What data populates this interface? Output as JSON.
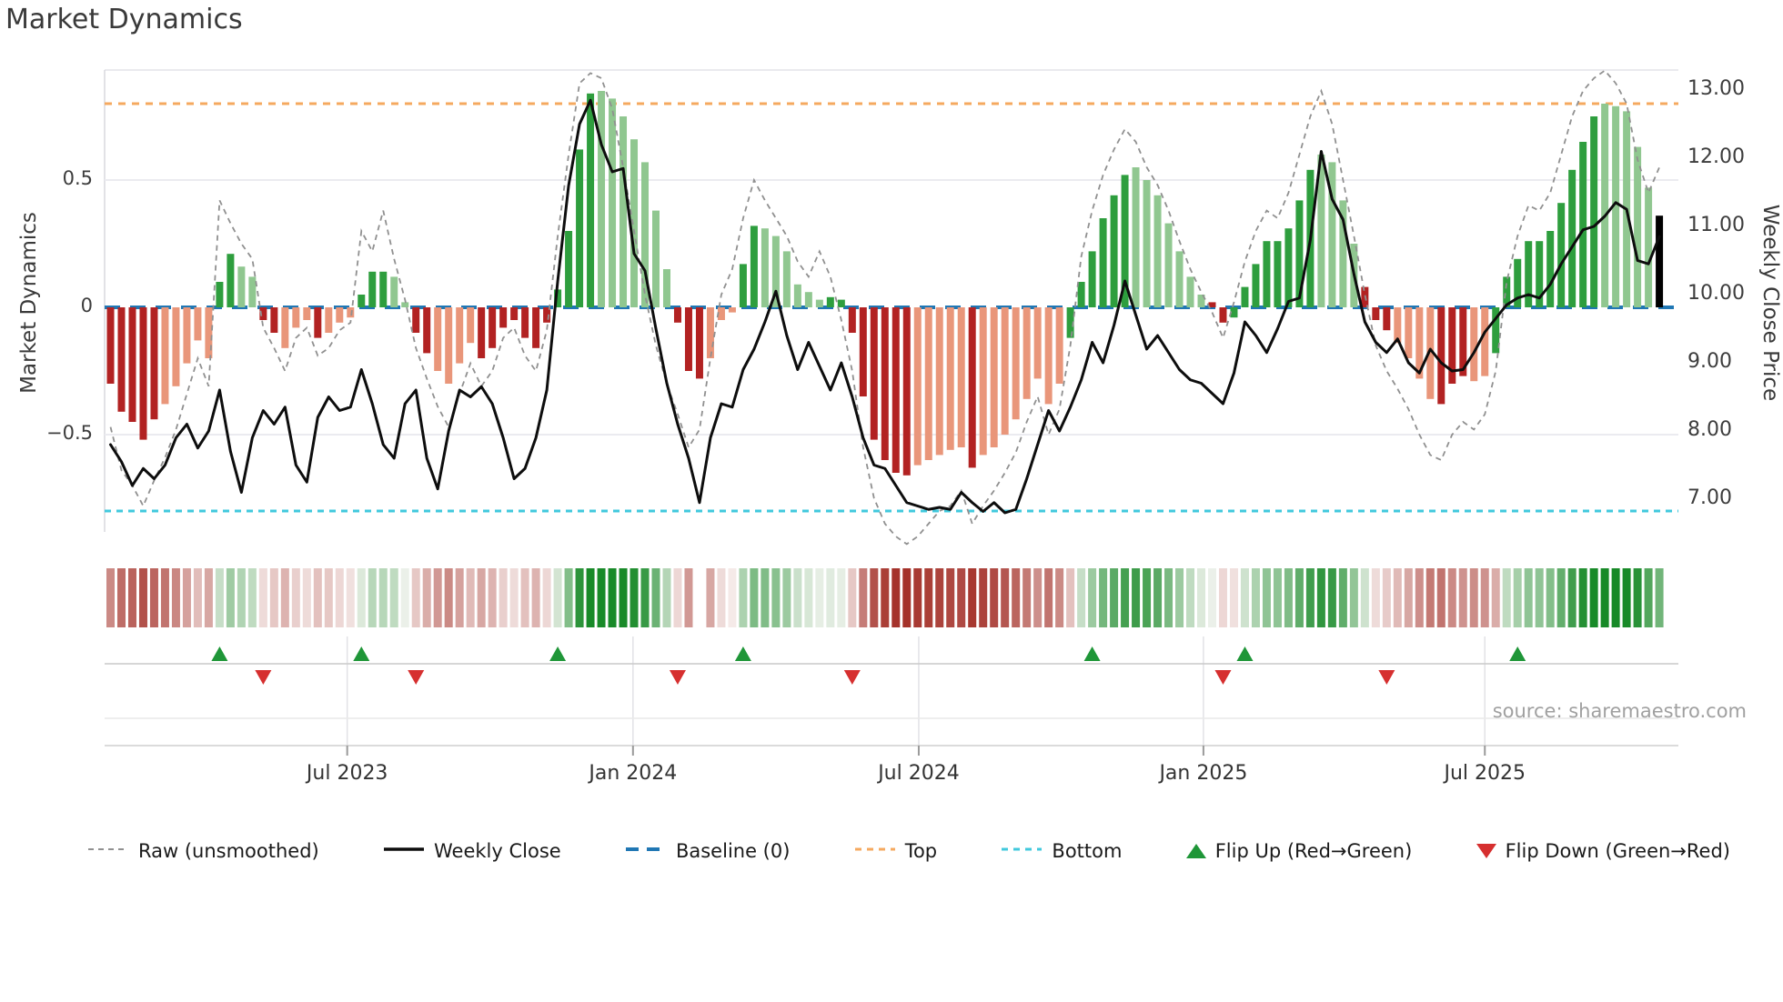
{
  "title": "Market Dynamics",
  "source_note": "source: sharemaestro.com",
  "axes": {
    "left_label": "Market Dynamics",
    "right_label": "Weekly Close Price",
    "left_ticks": [
      "0.5",
      "0",
      "−0.5"
    ],
    "left_tick_values": [
      0.5,
      0,
      -0.5
    ],
    "right_ticks": [
      "13.00",
      "12.00",
      "11.00",
      "10.00",
      "9.00",
      "8.00",
      "7.00"
    ],
    "right_tick_values": [
      13,
      12,
      11,
      10,
      9,
      8,
      7
    ],
    "x_ticks": [
      "Jul 2023",
      "Jan 2024",
      "Jul 2024",
      "Jan 2025",
      "Jul 2025"
    ],
    "x_tick_week_index": [
      21.7,
      47.9,
      74.1,
      100.2,
      126.0
    ]
  },
  "legend": [
    {
      "id": "raw",
      "label": "Raw (unsmoothed)",
      "swatch": "dashed-gray-line"
    },
    {
      "id": "weekly-close",
      "label": "Weekly Close",
      "swatch": "solid-black-line"
    },
    {
      "id": "baseline",
      "label": "Baseline (0)",
      "swatch": "dashed-blue-line"
    },
    {
      "id": "top",
      "label": "Top",
      "swatch": "dashed-orange-line"
    },
    {
      "id": "bottom",
      "label": "Bottom",
      "swatch": "dashed-cyan-line"
    },
    {
      "id": "flip-up",
      "label": "Flip Up (Red→Green)",
      "swatch": "green-up-triangle"
    },
    {
      "id": "flip-down",
      "label": "Flip Down (Green→Red)",
      "swatch": "red-down-triangle"
    }
  ],
  "colors": {
    "bar_dark_red": "#b22222",
    "bar_light_red": "#e9967a",
    "bar_dark_green": "#2e9e3e",
    "bar_light_green": "#90c790",
    "baseline_blue": "#2077b4",
    "top_orange": "#f5a95f",
    "bottom_cyan": "#41c9dd",
    "close_black": "#0d0d0d",
    "raw_gray": "#909090",
    "flip_up_green": "#1f9638",
    "flip_down_red": "#d62f2f",
    "heat_deep_green": "#188a28",
    "heat_deep_red": "#a02820",
    "grid": "#ebebf0"
  },
  "chart_data": {
    "type": "combo-bar-line-heatmap",
    "n_weeks": 143,
    "baseline": 0,
    "top_threshold": 0.8,
    "bottom_threshold": -0.8,
    "osc_axis_ticks": [
      0.5,
      0,
      -0.5
    ],
    "osc_axis_range": [
      -0.92,
      0.93
    ],
    "price_axis_range": [
      6.7,
      13.3
    ],
    "oscillator_values": [
      -0.3,
      -0.41,
      -0.45,
      -0.52,
      -0.44,
      -0.38,
      -0.31,
      -0.22,
      -0.13,
      -0.2,
      0.1,
      0.21,
      0.16,
      0.12,
      -0.05,
      -0.1,
      -0.16,
      -0.08,
      -0.05,
      -0.12,
      -0.1,
      -0.06,
      -0.04,
      0.05,
      0.14,
      0.14,
      0.12,
      0.02,
      -0.1,
      -0.18,
      -0.25,
      -0.3,
      -0.22,
      -0.14,
      -0.2,
      -0.16,
      -0.08,
      -0.05,
      -0.12,
      -0.16,
      -0.06,
      0.07,
      0.3,
      0.62,
      0.84,
      0.85,
      0.82,
      0.75,
      0.66,
      0.57,
      0.38,
      0.15,
      -0.06,
      -0.25,
      -0.28,
      -0.2,
      -0.05,
      -0.02,
      0.17,
      0.32,
      0.31,
      0.28,
      0.22,
      0.09,
      0.06,
      0.03,
      0.04,
      0.03,
      -0.1,
      -0.35,
      -0.52,
      -0.6,
      -0.65,
      -0.66,
      -0.62,
      -0.6,
      -0.58,
      -0.56,
      -0.55,
      -0.63,
      -0.58,
      -0.55,
      -0.5,
      -0.44,
      -0.36,
      -0.28,
      -0.38,
      -0.3,
      -0.12,
      0.1,
      0.22,
      0.35,
      0.44,
      0.52,
      0.55,
      0.5,
      0.44,
      0.33,
      0.22,
      0.12,
      0.05,
      0.02,
      -0.06,
      -0.04,
      0.08,
      0.17,
      0.26,
      0.26,
      0.31,
      0.42,
      0.54,
      0.6,
      0.57,
      0.42,
      0.25,
      0.08,
      -0.05,
      -0.09,
      -0.14,
      -0.2,
      -0.28,
      -0.36,
      -0.38,
      -0.3,
      -0.27,
      -0.29,
      -0.27,
      -0.18,
      0.12,
      0.19,
      0.26,
      0.26,
      0.3,
      0.41,
      0.54,
      0.65,
      0.75,
      0.8,
      0.79,
      0.77,
      0.63,
      0.47,
      0.36
    ],
    "oscillator_palette": "DDDDDSSSSSGGLLDDSSSDSSSGGGLLDDSSSSDDDDDDDGGGGLLLLLLLDDDSSSGGLLLLLLGGDDDDDDSSSSSDSSSSSSSSGGGGGGLLLLLLLDDGGGGGGGGLLLLDDDSSSSDDDSSGGGGGGGGGGLLLLL",
    "weekly_close": [
      7.8,
      7.55,
      7.2,
      7.45,
      7.3,
      7.5,
      7.9,
      8.1,
      7.75,
      8.0,
      8.6,
      7.7,
      7.1,
      7.9,
      8.3,
      8.1,
      8.35,
      7.5,
      7.25,
      8.2,
      8.5,
      8.3,
      8.35,
      8.9,
      8.4,
      7.8,
      7.6,
      8.4,
      8.6,
      7.6,
      7.15,
      8.0,
      8.6,
      8.5,
      8.65,
      8.4,
      7.9,
      7.3,
      7.45,
      7.9,
      8.6,
      10.2,
      11.6,
      12.5,
      12.85,
      12.2,
      11.8,
      11.85,
      10.6,
      10.35,
      9.5,
      8.7,
      8.1,
      7.6,
      6.95,
      7.9,
      8.4,
      8.35,
      8.9,
      9.2,
      9.6,
      10.05,
      9.4,
      8.9,
      9.3,
      8.95,
      8.6,
      9.0,
      8.5,
      7.9,
      7.5,
      7.45,
      7.2,
      6.95,
      6.9,
      6.85,
      6.88,
      6.85,
      7.1,
      6.95,
      6.82,
      6.95,
      6.8,
      6.85,
      7.3,
      7.8,
      8.3,
      8.0,
      8.35,
      8.75,
      9.3,
      9.0,
      9.55,
      10.2,
      9.7,
      9.2,
      9.4,
      9.15,
      8.9,
      8.75,
      8.7,
      8.55,
      8.4,
      8.85,
      9.6,
      9.4,
      9.15,
      9.5,
      9.9,
      9.95,
      10.8,
      12.1,
      11.4,
      11.1,
      10.3,
      9.6,
      9.3,
      9.15,
      9.35,
      9.0,
      8.85,
      9.2,
      9.0,
      8.88,
      8.9,
      9.15,
      9.45,
      9.65,
      9.85,
      9.95,
      10.0,
      9.95,
      10.15,
      10.45,
      10.7,
      10.95,
      11.0,
      11.15,
      11.35,
      11.25,
      10.5,
      10.45,
      10.85
    ],
    "raw_unsmoothed": [
      -0.47,
      -0.64,
      -0.7,
      -0.78,
      -0.68,
      -0.59,
      -0.48,
      -0.34,
      -0.2,
      -0.31,
      0.42,
      0.33,
      0.25,
      0.19,
      -0.08,
      -0.16,
      -0.25,
      -0.12,
      -0.08,
      -0.19,
      -0.16,
      -0.09,
      -0.06,
      0.3,
      0.22,
      0.38,
      0.19,
      0.03,
      -0.16,
      -0.28,
      -0.39,
      -0.47,
      -0.34,
      -0.22,
      -0.31,
      -0.25,
      -0.12,
      -0.08,
      -0.19,
      -0.25,
      -0.09,
      0.28,
      0.6,
      0.88,
      0.92,
      0.9,
      0.78,
      0.55,
      0.3,
      0.05,
      -0.15,
      -0.3,
      -0.42,
      -0.55,
      -0.48,
      -0.2,
      0.05,
      0.15,
      0.35,
      0.5,
      0.42,
      0.35,
      0.28,
      0.18,
      0.12,
      0.22,
      0.12,
      -0.05,
      -0.25,
      -0.55,
      -0.75,
      -0.85,
      -0.9,
      -0.93,
      -0.9,
      -0.85,
      -0.8,
      -0.78,
      -0.72,
      -0.85,
      -0.78,
      -0.72,
      -0.65,
      -0.57,
      -0.45,
      -0.35,
      -0.5,
      -0.4,
      -0.15,
      0.2,
      0.38,
      0.52,
      0.62,
      0.7,
      0.65,
      0.55,
      0.48,
      0.38,
      0.26,
      0.15,
      0.06,
      -0.02,
      -0.12,
      0.02,
      0.18,
      0.3,
      0.38,
      0.35,
      0.45,
      0.6,
      0.75,
      0.85,
      0.72,
      0.5,
      0.28,
      0.05,
      -0.15,
      -0.25,
      -0.32,
      -0.4,
      -0.5,
      -0.58,
      -0.6,
      -0.5,
      -0.45,
      -0.48,
      -0.42,
      -0.25,
      0.1,
      0.28,
      0.4,
      0.38,
      0.45,
      0.6,
      0.75,
      0.85,
      0.9,
      0.93,
      0.88,
      0.8,
      0.58,
      0.45,
      0.55
    ],
    "flip_up_weeks": [
      10,
      23,
      41,
      58,
      90,
      104,
      129
    ],
    "flip_down_weeks": [
      14,
      28,
      52,
      68,
      102,
      117
    ],
    "heatmap_missing_week": 54
  }
}
